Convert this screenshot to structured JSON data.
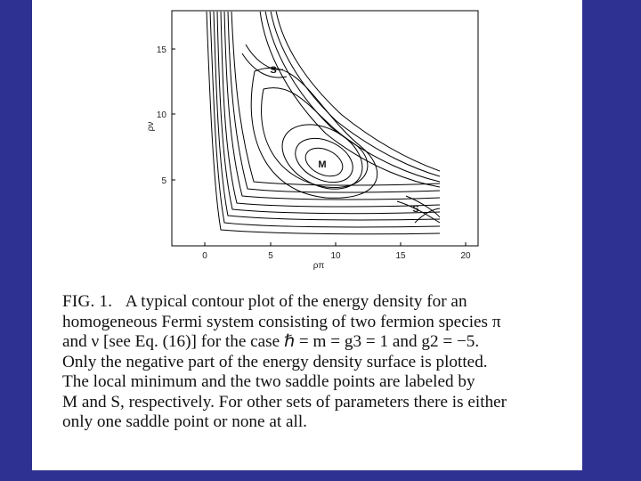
{
  "figure": {
    "tag": "FIG. 1.",
    "x_ticks": [
      "0",
      "5",
      "10",
      "15",
      "20"
    ],
    "y_ticks": [
      "5",
      "10",
      "15"
    ],
    "xlabel": "ρπ",
    "ylabel": "ρν",
    "point_labels": {
      "minimum": "M",
      "saddle_upper": "S",
      "saddle_lower": "S"
    }
  },
  "caption": {
    "lines": [
      "A typical contour plot of the energy density for an",
      "homogeneous Fermi system consisting of two fermion species π",
      "and ν [see Eq. (16)] for the case ℏ = m = g3 = 1 and g2 = −5.",
      "Only the negative part of the energy density surface is plotted.",
      "The local minimum and the two saddle points are labeled by",
      "M and S, respectively. For other sets of parameters there is either",
      "only one saddle point or none at all."
    ]
  },
  "colors": {
    "frame": "#2e3192",
    "background": "#ffffff",
    "ink": "#111111"
  }
}
